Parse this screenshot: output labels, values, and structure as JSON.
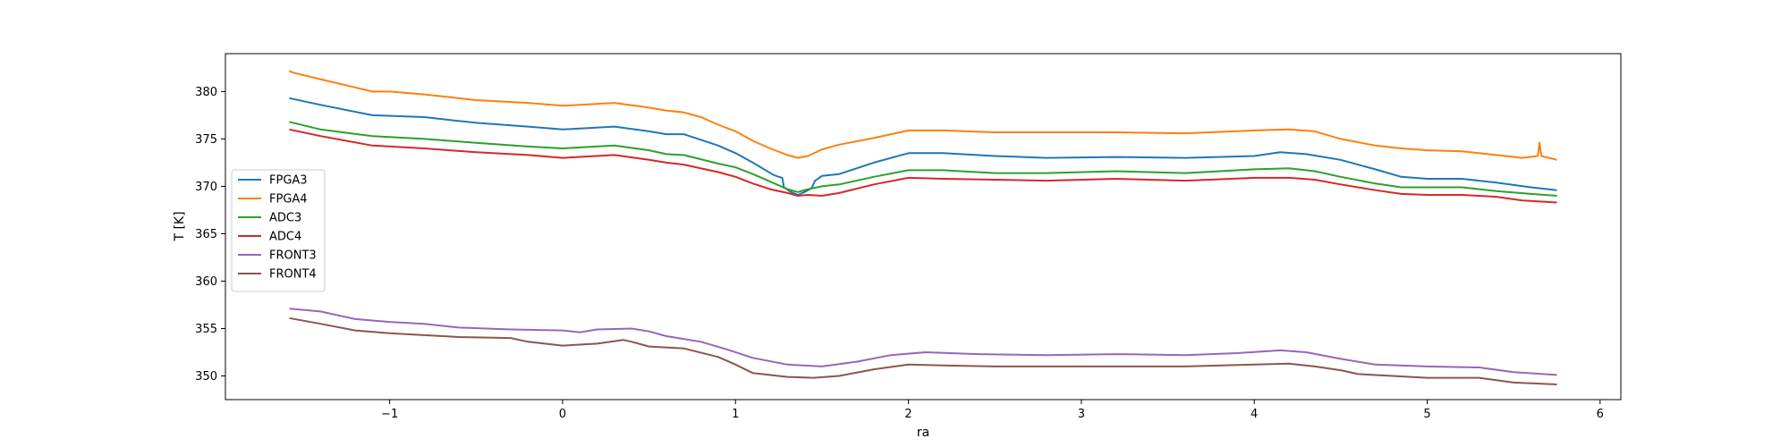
{
  "chart_data": {
    "type": "line",
    "title": "",
    "xlabel": "ra",
    "ylabel": "T [K]",
    "xlim": [
      -1.95,
      6.12
    ],
    "ylim": [
      347.5,
      384.0
    ],
    "xticks": [
      -1,
      0,
      1,
      2,
      3,
      4,
      5,
      6
    ],
    "xtick_labels": [
      "−1",
      "0",
      "1",
      "2",
      "3",
      "4",
      "5",
      "6"
    ],
    "yticks": [
      350,
      355,
      360,
      365,
      370,
      375,
      380
    ],
    "ytick_labels": [
      "350",
      "355",
      "360",
      "365",
      "370",
      "375",
      "380"
    ],
    "grid": false,
    "legend_position": "center-left",
    "series": [
      {
        "name": "FPGA3",
        "color": "#1f77b4",
        "points": [
          [
            -1.58,
            379.3
          ],
          [
            -1.4,
            378.6
          ],
          [
            -1.1,
            377.5
          ],
          [
            -0.8,
            377.3
          ],
          [
            -0.5,
            376.7
          ],
          [
            -0.2,
            376.3
          ],
          [
            0,
            376.0
          ],
          [
            0.3,
            376.3
          ],
          [
            0.5,
            375.8
          ],
          [
            0.6,
            375.5
          ],
          [
            0.7,
            375.5
          ],
          [
            0.9,
            374.3
          ],
          [
            1.0,
            373.5
          ],
          [
            1.1,
            372.5
          ],
          [
            1.22,
            371.2
          ],
          [
            1.25,
            371.0
          ],
          [
            1.27,
            370.9
          ],
          [
            1.28,
            369.9
          ],
          [
            1.32,
            369.4
          ],
          [
            1.36,
            369.1
          ],
          [
            1.4,
            369.4
          ],
          [
            1.44,
            369.8
          ],
          [
            1.46,
            370.6
          ],
          [
            1.5,
            371.1
          ],
          [
            1.6,
            371.3
          ],
          [
            1.8,
            372.5
          ],
          [
            2.0,
            373.5
          ],
          [
            2.2,
            373.5
          ],
          [
            2.5,
            373.2
          ],
          [
            2.8,
            373.0
          ],
          [
            3.2,
            373.1
          ],
          [
            3.6,
            373.0
          ],
          [
            4.0,
            373.2
          ],
          [
            4.15,
            373.6
          ],
          [
            4.3,
            373.4
          ],
          [
            4.5,
            372.8
          ],
          [
            4.7,
            371.8
          ],
          [
            4.85,
            371.0
          ],
          [
            5.0,
            370.8
          ],
          [
            5.2,
            370.8
          ],
          [
            5.4,
            370.4
          ],
          [
            5.6,
            369.9
          ],
          [
            5.75,
            369.6
          ]
        ]
      },
      {
        "name": "FPGA4",
        "color": "#ff7f0e",
        "points": [
          [
            -1.58,
            382.2
          ],
          [
            -1.56,
            382.0
          ],
          [
            -1.4,
            381.3
          ],
          [
            -1.1,
            380.0
          ],
          [
            -1.0,
            380.0
          ],
          [
            -0.8,
            379.7
          ],
          [
            -0.5,
            379.1
          ],
          [
            -0.2,
            378.8
          ],
          [
            0,
            378.5
          ],
          [
            0.3,
            378.8
          ],
          [
            0.5,
            378.3
          ],
          [
            0.6,
            378.0
          ],
          [
            0.7,
            377.8
          ],
          [
            0.8,
            377.3
          ],
          [
            0.9,
            376.5
          ],
          [
            1.0,
            375.8
          ],
          [
            1.1,
            374.8
          ],
          [
            1.2,
            374.0
          ],
          [
            1.3,
            373.3
          ],
          [
            1.36,
            373.0
          ],
          [
            1.42,
            373.2
          ],
          [
            1.5,
            373.9
          ],
          [
            1.6,
            374.4
          ],
          [
            1.8,
            375.1
          ],
          [
            2.0,
            375.9
          ],
          [
            2.2,
            375.9
          ],
          [
            2.5,
            375.7
          ],
          [
            2.8,
            375.7
          ],
          [
            3.2,
            375.7
          ],
          [
            3.6,
            375.6
          ],
          [
            4.0,
            375.9
          ],
          [
            4.2,
            376.0
          ],
          [
            4.35,
            375.8
          ],
          [
            4.5,
            375.0
          ],
          [
            4.7,
            374.3
          ],
          [
            4.85,
            374.0
          ],
          [
            5.0,
            373.8
          ],
          [
            5.2,
            373.7
          ],
          [
            5.4,
            373.3
          ],
          [
            5.55,
            373.0
          ],
          [
            5.64,
            373.2
          ],
          [
            5.65,
            374.6
          ],
          [
            5.66,
            373.2
          ],
          [
            5.75,
            372.8
          ]
        ]
      },
      {
        "name": "ADC3",
        "color": "#2ca02c",
        "points": [
          [
            -1.58,
            376.8
          ],
          [
            -1.4,
            376.0
          ],
          [
            -1.1,
            375.3
          ],
          [
            -0.8,
            375.0
          ],
          [
            -0.5,
            374.6
          ],
          [
            -0.2,
            374.2
          ],
          [
            0,
            374.0
          ],
          [
            0.3,
            374.3
          ],
          [
            0.5,
            373.8
          ],
          [
            0.6,
            373.4
          ],
          [
            0.7,
            373.3
          ],
          [
            0.9,
            372.4
          ],
          [
            1.0,
            372.0
          ],
          [
            1.1,
            371.3
          ],
          [
            1.2,
            370.5
          ],
          [
            1.3,
            369.7
          ],
          [
            1.36,
            369.4
          ],
          [
            1.42,
            369.7
          ],
          [
            1.5,
            370.0
          ],
          [
            1.6,
            370.2
          ],
          [
            1.8,
            371.0
          ],
          [
            2.0,
            371.7
          ],
          [
            2.2,
            371.7
          ],
          [
            2.5,
            371.4
          ],
          [
            2.8,
            371.4
          ],
          [
            3.2,
            371.6
          ],
          [
            3.6,
            371.4
          ],
          [
            4.0,
            371.8
          ],
          [
            4.2,
            371.9
          ],
          [
            4.35,
            371.6
          ],
          [
            4.5,
            371.0
          ],
          [
            4.7,
            370.3
          ],
          [
            4.85,
            369.9
          ],
          [
            5.0,
            369.9
          ],
          [
            5.2,
            369.9
          ],
          [
            5.4,
            369.5
          ],
          [
            5.6,
            369.2
          ],
          [
            5.75,
            369.0
          ]
        ]
      },
      {
        "name": "ADC4",
        "color": "#d62728",
        "points": [
          [
            -1.58,
            376.0
          ],
          [
            -1.4,
            375.3
          ],
          [
            -1.1,
            374.3
          ],
          [
            -0.8,
            374.0
          ],
          [
            -0.5,
            373.6
          ],
          [
            -0.2,
            373.3
          ],
          [
            0,
            373.0
          ],
          [
            0.3,
            373.3
          ],
          [
            0.5,
            372.8
          ],
          [
            0.6,
            372.5
          ],
          [
            0.7,
            372.3
          ],
          [
            0.9,
            371.5
          ],
          [
            1.0,
            371.0
          ],
          [
            1.1,
            370.3
          ],
          [
            1.2,
            369.7
          ],
          [
            1.3,
            369.3
          ],
          [
            1.36,
            369.0
          ],
          [
            1.42,
            369.1
          ],
          [
            1.5,
            369.0
          ],
          [
            1.6,
            369.3
          ],
          [
            1.8,
            370.2
          ],
          [
            2.0,
            370.9
          ],
          [
            2.2,
            370.8
          ],
          [
            2.5,
            370.7
          ],
          [
            2.8,
            370.6
          ],
          [
            3.2,
            370.8
          ],
          [
            3.6,
            370.6
          ],
          [
            4.0,
            370.9
          ],
          [
            4.2,
            370.9
          ],
          [
            4.35,
            370.7
          ],
          [
            4.5,
            370.2
          ],
          [
            4.7,
            369.6
          ],
          [
            4.85,
            369.2
          ],
          [
            5.0,
            369.1
          ],
          [
            5.2,
            369.1
          ],
          [
            5.4,
            368.9
          ],
          [
            5.55,
            368.5
          ],
          [
            5.75,
            368.3
          ]
        ]
      },
      {
        "name": "FRONT3",
        "color": "#9467bd",
        "points": [
          [
            -1.58,
            357.1
          ],
          [
            -1.4,
            356.8
          ],
          [
            -1.2,
            356.0
          ],
          [
            -1.0,
            355.7
          ],
          [
            -0.8,
            355.5
          ],
          [
            -0.6,
            355.1
          ],
          [
            -0.3,
            354.9
          ],
          [
            0,
            354.8
          ],
          [
            0.1,
            354.6
          ],
          [
            0.2,
            354.9
          ],
          [
            0.4,
            355.0
          ],
          [
            0.5,
            354.7
          ],
          [
            0.6,
            354.2
          ],
          [
            0.8,
            353.6
          ],
          [
            0.95,
            352.8
          ],
          [
            1.1,
            351.9
          ],
          [
            1.3,
            351.2
          ],
          [
            1.5,
            351.0
          ],
          [
            1.7,
            351.5
          ],
          [
            1.9,
            352.2
          ],
          [
            2.1,
            352.5
          ],
          [
            2.4,
            352.3
          ],
          [
            2.8,
            352.2
          ],
          [
            3.2,
            352.3
          ],
          [
            3.6,
            352.2
          ],
          [
            3.9,
            352.4
          ],
          [
            4.15,
            352.7
          ],
          [
            4.3,
            352.5
          ],
          [
            4.5,
            351.8
          ],
          [
            4.7,
            351.2
          ],
          [
            5.0,
            351.0
          ],
          [
            5.3,
            350.9
          ],
          [
            5.5,
            350.4
          ],
          [
            5.75,
            350.1
          ]
        ]
      },
      {
        "name": "FRONT4",
        "color": "#8c564b",
        "points": [
          [
            -1.58,
            356.1
          ],
          [
            -1.4,
            355.5
          ],
          [
            -1.2,
            354.8
          ],
          [
            -1.0,
            354.5
          ],
          [
            -0.8,
            354.3
          ],
          [
            -0.6,
            354.1
          ],
          [
            -0.3,
            354.0
          ],
          [
            -0.2,
            353.6
          ],
          [
            0,
            353.2
          ],
          [
            0.2,
            353.4
          ],
          [
            0.35,
            353.8
          ],
          [
            0.4,
            353.6
          ],
          [
            0.5,
            353.1
          ],
          [
            0.7,
            352.9
          ],
          [
            0.9,
            352.0
          ],
          [
            1.0,
            351.2
          ],
          [
            1.1,
            350.3
          ],
          [
            1.3,
            349.9
          ],
          [
            1.45,
            349.8
          ],
          [
            1.6,
            350.0
          ],
          [
            1.8,
            350.7
          ],
          [
            2.0,
            351.2
          ],
          [
            2.2,
            351.1
          ],
          [
            2.5,
            351.0
          ],
          [
            2.8,
            351.0
          ],
          [
            3.2,
            351.0
          ],
          [
            3.6,
            351.0
          ],
          [
            4.0,
            351.2
          ],
          [
            4.2,
            351.3
          ],
          [
            4.35,
            351.0
          ],
          [
            4.5,
            350.6
          ],
          [
            4.6,
            350.2
          ],
          [
            4.8,
            350.0
          ],
          [
            5.0,
            349.8
          ],
          [
            5.2,
            349.8
          ],
          [
            5.3,
            349.8
          ],
          [
            5.5,
            349.3
          ],
          [
            5.75,
            349.1
          ]
        ]
      }
    ]
  }
}
